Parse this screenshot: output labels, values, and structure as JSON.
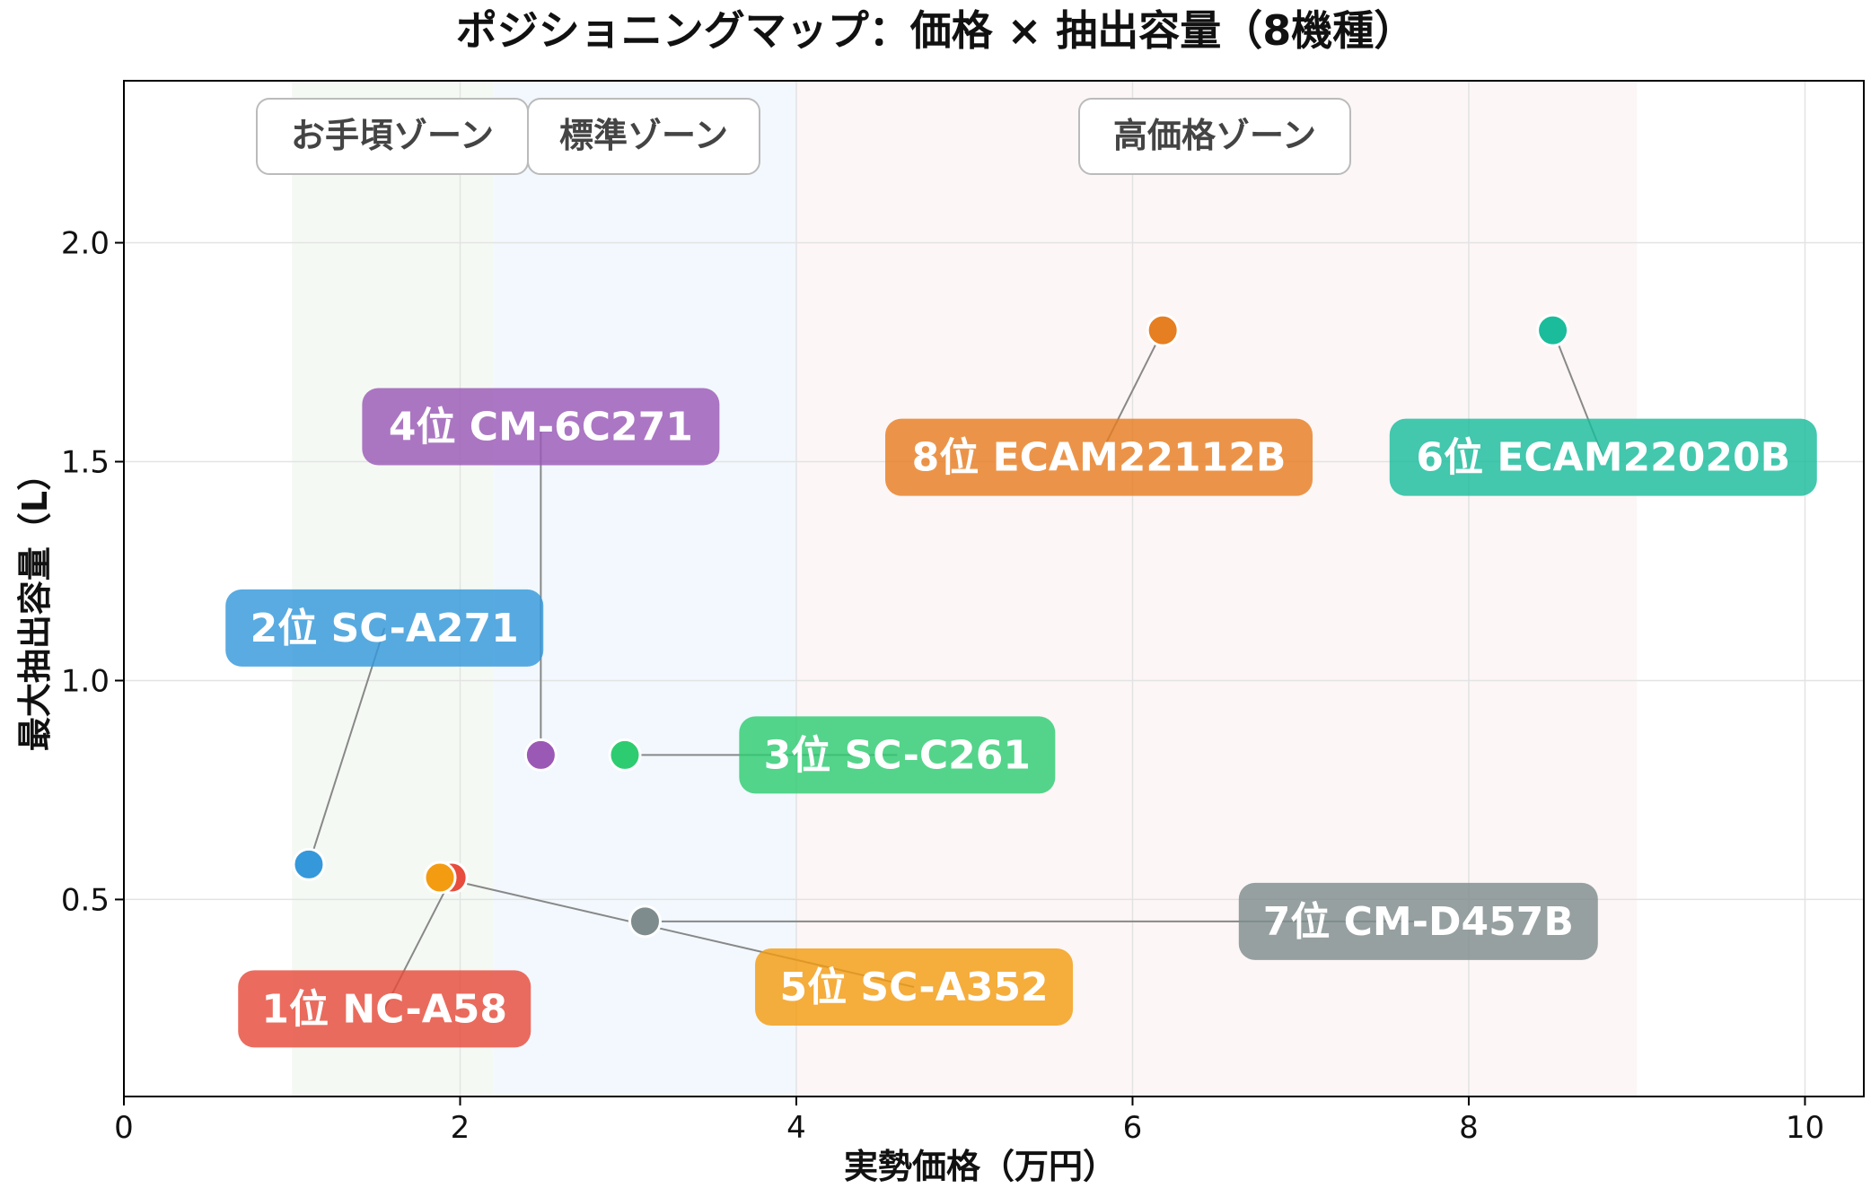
{
  "chart_data": {
    "type": "scatter",
    "title": "ポジショニングマップ：価格 × 抽出容量（8機種）",
    "xlabel": "実勢価格（万円）",
    "ylabel": "最大抽出容量（L）",
    "xlim": [
      0,
      10.35
    ],
    "ylim": [
      0.05,
      2.37
    ],
    "xticks": [
      0,
      2,
      4,
      6,
      8,
      10
    ],
    "yticks": [
      0.5,
      1.0,
      1.5,
      2.0
    ],
    "xtick_labels": [
      "0",
      "2",
      "4",
      "6",
      "8",
      "10"
    ],
    "ytick_labels": [
      "0.5",
      "1.0",
      "1.5",
      "2.0"
    ],
    "grid": true,
    "zones": [
      {
        "label": "お手頃ゾーン",
        "x_range": [
          1.0,
          2.2
        ],
        "color": "#e9f2e6"
      },
      {
        "label": "標準ゾーン",
        "x_range": [
          2.2,
          4.0
        ],
        "color": "#e3f0fa"
      },
      {
        "label": "高価格ゾーン",
        "x_range": [
          4.0,
          9.0
        ],
        "color": "#fbeceb"
      }
    ],
    "points": [
      {
        "label": "1位 NC-A58",
        "x": 1.95,
        "y": 0.55,
        "color": "#e74c3c",
        "label_x": 1.55,
        "label_y": 0.25
      },
      {
        "label": "2位 SC-A271",
        "x": 1.1,
        "y": 0.58,
        "color": "#3498db",
        "label_x": 1.55,
        "label_y": 1.12
      },
      {
        "label": "3位 SC-C261",
        "x": 2.98,
        "y": 0.83,
        "color": "#2ecc71",
        "label_x": 4.6,
        "label_y": 0.83
      },
      {
        "label": "4位 CM-6C271",
        "x": 2.48,
        "y": 0.83,
        "color": "#9b59b6",
        "label_x": 2.48,
        "label_y": 1.58
      },
      {
        "label": "5位 SC-A352",
        "x": 1.88,
        "y": 0.55,
        "color": "#f39c12",
        "label_x": 4.7,
        "label_y": 0.3
      },
      {
        "label": "6位 ECAM22020B",
        "x": 8.5,
        "y": 1.8,
        "color": "#1abc9c",
        "label_x": 8.8,
        "label_y": 1.51
      },
      {
        "label": "7位 CM-D457B",
        "x": 3.1,
        "y": 0.45,
        "color": "#7f8c8d",
        "label_x": 7.7,
        "label_y": 0.45
      },
      {
        "label": "8位 ECAM22112B",
        "x": 6.18,
        "y": 1.8,
        "color": "#e67e22",
        "label_x": 5.8,
        "label_y": 1.51
      }
    ]
  }
}
